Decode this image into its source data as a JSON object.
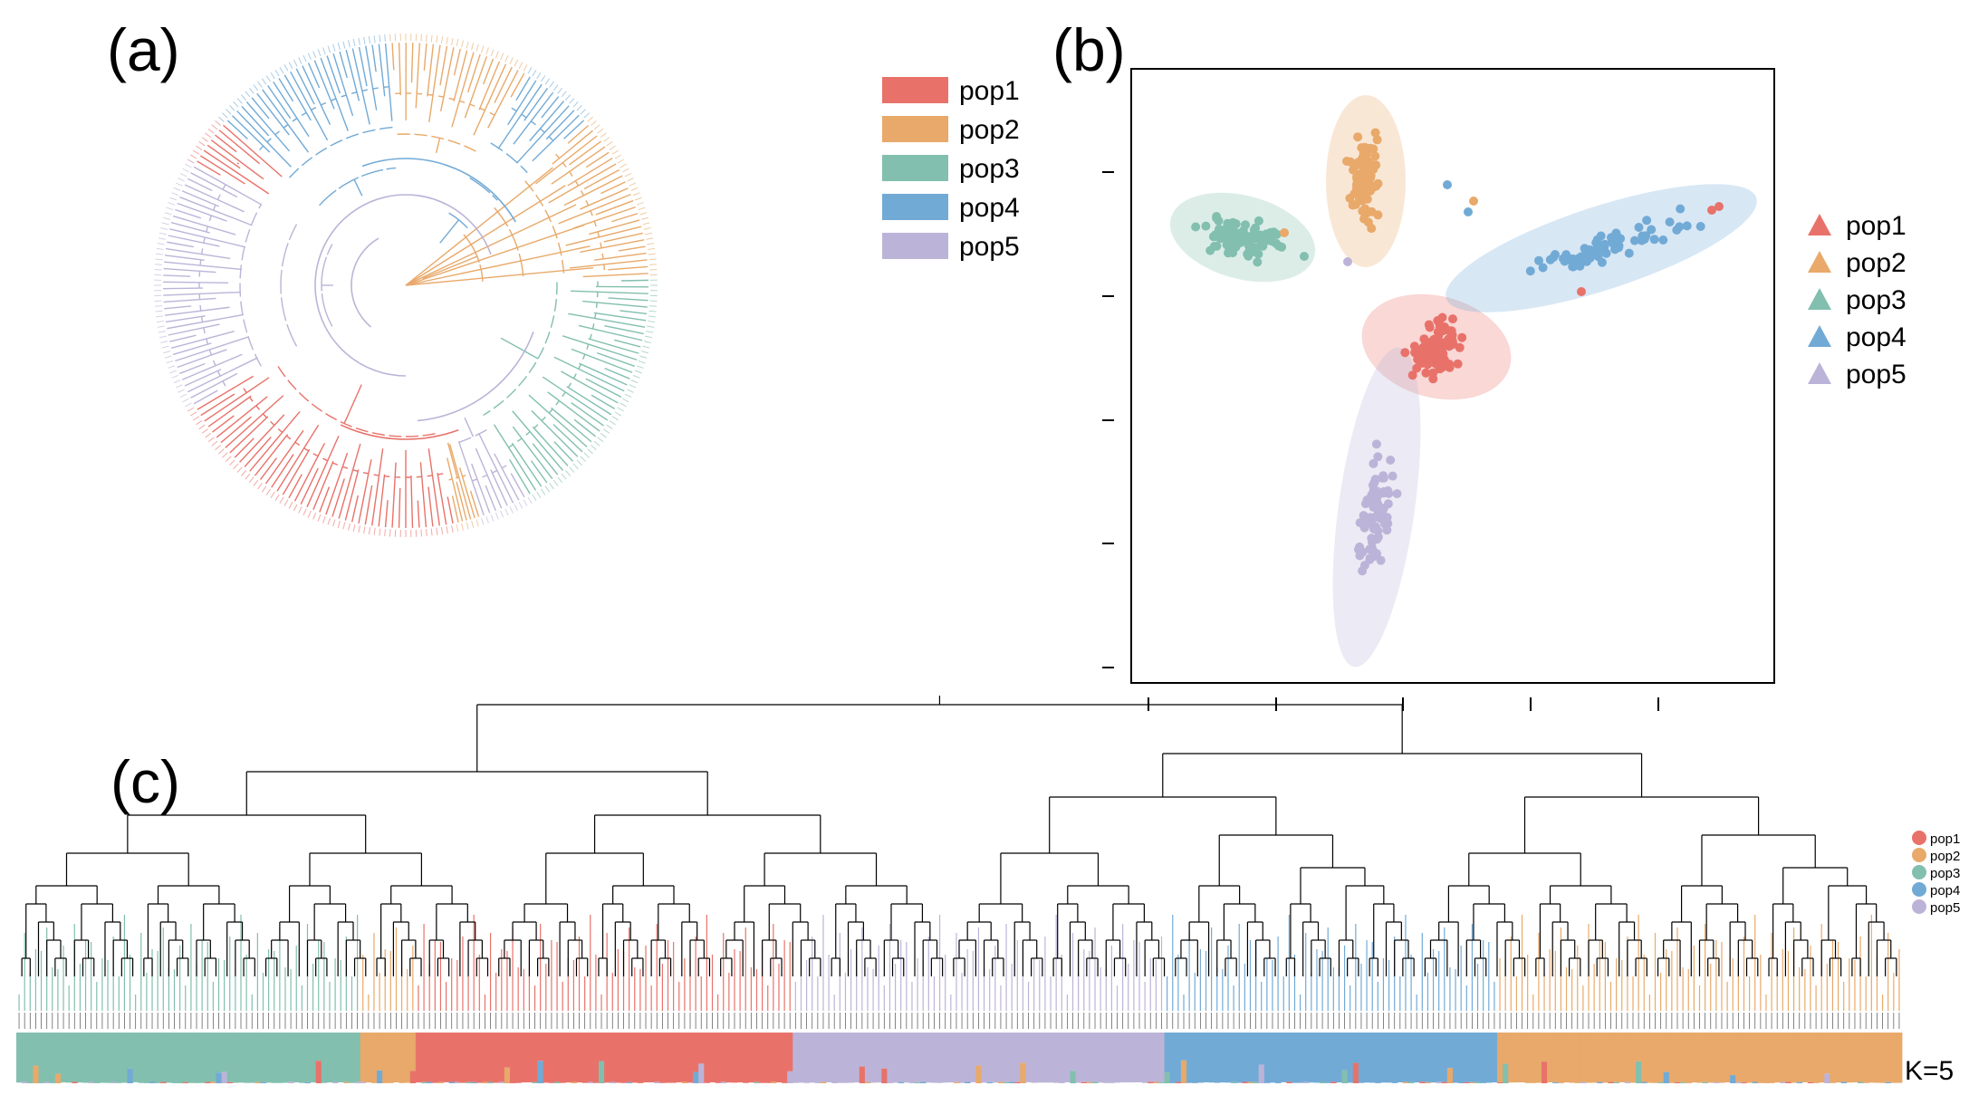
{
  "panels": {
    "a": "(a)",
    "b": "(b)",
    "c": "(c)"
  },
  "populations": [
    {
      "id": "pop1",
      "label": "pop1",
      "color": "#e8726a"
    },
    {
      "id": "pop2",
      "label": "pop2",
      "color": "#e8a96a"
    },
    {
      "id": "pop3",
      "label": "pop3",
      "color": "#82bfae"
    },
    {
      "id": "pop4",
      "label": "pop4",
      "color": "#72aad6"
    },
    {
      "id": "pop5",
      "label": "pop5",
      "color": "#bcb4d8"
    }
  ],
  "structure": {
    "k_label": "K=5"
  }
}
